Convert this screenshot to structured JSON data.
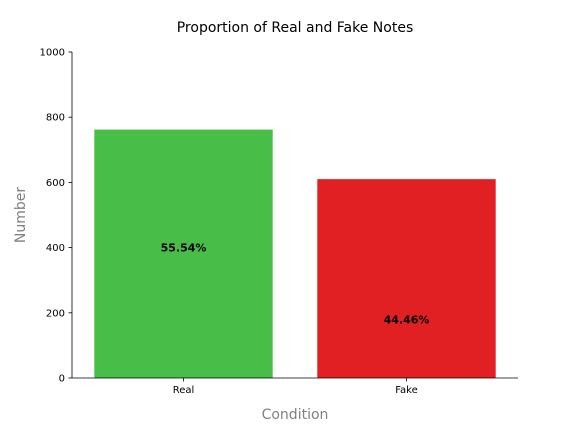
{
  "chart_data": {
    "type": "bar",
    "title": "Proportion of Real and Fake Notes",
    "xlabel": "Condition",
    "ylabel": "Number",
    "categories": [
      "Real",
      "Fake"
    ],
    "values": [
      762,
      610
    ],
    "ylim": [
      0,
      1000
    ],
    "yticks": [
      0,
      200,
      400,
      600,
      800,
      1000
    ],
    "yticks_text": [
      "0",
      "200",
      "400",
      "600",
      "800",
      "1000"
    ],
    "data_labels": [
      "55.54%",
      "44.46%"
    ],
    "data_label_values": [
      400,
      180
    ],
    "colors": [
      "#48bd48",
      "#e02022"
    ],
    "grid": false,
    "spines": [
      "left",
      "bottom"
    ]
  }
}
